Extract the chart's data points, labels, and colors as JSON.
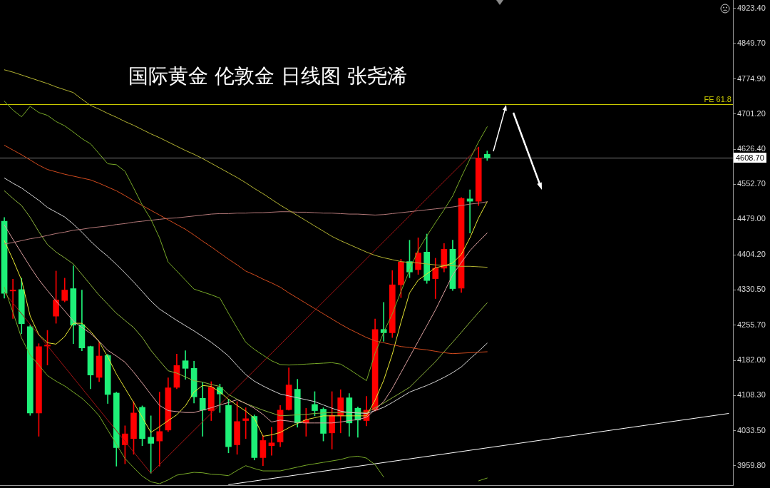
{
  "chart_data": {
    "type": "candlestick",
    "title": "国际黄金 伦敦金 日线图 张尧浠",
    "categories": [
      null,
      null,
      null,
      null,
      null,
      null,
      null,
      null,
      null,
      null,
      null,
      null,
      null,
      null,
      null,
      null,
      null,
      null,
      null,
      null,
      null,
      null,
      null,
      null,
      null,
      null,
      null,
      null,
      null,
      null,
      null,
      null,
      null,
      null,
      null,
      null,
      null,
      null,
      null,
      null,
      null,
      null,
      null,
      null,
      null,
      null,
      null,
      null,
      null,
      null,
      null,
      null,
      null,
      null,
      null,
      null,
      null,
      null,
      null,
      null,
      null,
      null,
      null,
      null,
      null,
      null,
      null,
      null,
      null,
      null,
      null,
      null,
      null,
      null,
      null,
      null,
      null,
      null,
      null,
      null,
      null,
      null,
      null,
      null,
      null
    ],
    "ohlc": [
      [
        4475,
        4483,
        4313,
        4323
      ],
      [
        4328,
        4353,
        4270,
        4330
      ],
      [
        4331,
        4355,
        4238,
        4259
      ],
      [
        4253,
        4257,
        4066,
        4071
      ],
      [
        4071,
        4217,
        4022,
        4211
      ],
      [
        4212,
        4245,
        4172,
        4214
      ],
      [
        4275,
        4370,
        4260,
        4309
      ],
      [
        4308,
        4355,
        4305,
        4330
      ],
      [
        4333,
        4381,
        4217,
        4256
      ],
      [
        4257,
        4330,
        4202,
        4208
      ],
      [
        4211,
        4212,
        4122,
        4151
      ],
      [
        4146,
        4220,
        4137,
        4191
      ],
      [
        4192,
        4195,
        4091,
        4110
      ],
      [
        4113,
        4115,
        3959,
        3998
      ],
      [
        4004,
        4044,
        3964,
        4027
      ],
      [
        4017,
        4095,
        3984,
        4071
      ],
      [
        4083,
        4086,
        4002,
        4017
      ],
      [
        4020,
        4065,
        3944,
        4007
      ],
      [
        4012,
        4115,
        3959,
        4032
      ],
      [
        4035,
        4145,
        4032,
        4124
      ],
      [
        4125,
        4195,
        4122,
        4171
      ],
      [
        4181,
        4202,
        4142,
        4165
      ],
      [
        4165,
        4180,
        4092,
        4105
      ],
      [
        4102,
        4135,
        4022,
        4077
      ],
      [
        4076,
        4137,
        4055,
        4125
      ],
      [
        4125,
        4132,
        4072,
        4111
      ],
      [
        4087,
        4100,
        3987,
        4000
      ],
      [
        4004,
        4095,
        3984,
        4053
      ],
      [
        4055,
        4082,
        4017,
        4059
      ],
      [
        4064,
        4067,
        3972,
        3977
      ],
      [
        3977,
        4024,
        3960,
        4013
      ],
      [
        4002,
        4041,
        3982,
        4008
      ],
      [
        4010,
        4087,
        4000,
        4077
      ],
      [
        4078,
        4166,
        4077,
        4130
      ],
      [
        4121,
        4142,
        4041,
        4050
      ],
      [
        4050,
        4081,
        4022,
        4056
      ],
      [
        4089,
        4116,
        4065,
        4076
      ],
      [
        4079,
        4082,
        4012,
        4028
      ],
      [
        4029,
        4116,
        3995,
        4066
      ],
      [
        4065,
        4120,
        4029,
        4103
      ],
      [
        4103,
        4112,
        4022,
        4050
      ],
      [
        4081,
        4084,
        4020,
        4056
      ],
      [
        4055,
        4106,
        4044,
        4077
      ],
      [
        4077,
        4269,
        4075,
        4247
      ],
      [
        4247,
        4304,
        4222,
        4240
      ],
      [
        4240,
        4371,
        4230,
        4341
      ],
      [
        4341,
        4395,
        4314,
        4389
      ],
      [
        4390,
        4435,
        4356,
        4368
      ],
      [
        4373,
        4440,
        4363,
        4408
      ],
      [
        4410,
        4448,
        4344,
        4350
      ],
      [
        4354,
        4397,
        4312,
        4376
      ],
      [
        4376,
        4428,
        4368,
        4416
      ],
      [
        4416,
        4435,
        4329,
        4333
      ],
      [
        4334,
        4525,
        4325,
        4523
      ],
      [
        4522,
        4541,
        4450,
        4517
      ],
      [
        4517,
        4631,
        4508,
        4608
      ],
      [
        4616,
        4623,
        4603,
        4608.7
      ],
      null,
      null,
      null,
      null,
      null,
      null,
      null,
      null,
      null,
      null,
      null,
      null,
      null,
      null,
      null,
      null,
      null,
      null,
      null,
      null,
      null,
      null,
      null,
      null,
      null,
      null,
      null,
      null
    ],
    "colors": [
      "#1ef078",
      "#ff0000",
      "#1ef078",
      "#1ef078",
      "#ff0000",
      "#ff0000",
      "#ff0000",
      "#ff0000",
      "#1ef078",
      "#1ef078",
      "#1ef078",
      "#ff0000",
      "#1ef078",
      "#1ef078",
      "#ff0000",
      "#ff0000",
      "#1ef078",
      "#1ef078",
      "#ff0000",
      "#ff0000",
      "#ff0000",
      "#1ef078",
      "#1ef078",
      "#1ef078",
      "#ff0000",
      "#1ef078",
      "#1ef078",
      "#ff0000",
      "#ff0000",
      "#1ef078",
      "#ff0000",
      "#ff0000",
      "#ff0000",
      "#ff0000",
      "#1ef078",
      "#ff0000",
      "#1ef078",
      "#1ef078",
      "#ff0000",
      "#ff0000",
      "#1ef078",
      "#1ef078",
      "#ff0000",
      "#ff0000",
      "#1ef078",
      "#ff0000",
      "#ff0000",
      "#1ef078",
      "#ff0000",
      "#1ef078",
      "#ff0000",
      "#ff0000",
      "#1ef078",
      "#ff0000",
      "#1ef078",
      "#ff0000",
      "#1ef078",
      null,
      null,
      null,
      null,
      null,
      null,
      null,
      null,
      null,
      null,
      null,
      null,
      null,
      null,
      null,
      null,
      null,
      null,
      null,
      null,
      null,
      null,
      null,
      null,
      null,
      null,
      null,
      null
    ],
    "series": [
      {
        "type": "line",
        "color": "#b4b432",
        "values": [
          4794,
          4789,
          4783,
          4777,
          4771,
          4765,
          4758,
          4752,
          4746,
          4732,
          4719,
          4711,
          4702,
          4694,
          4685,
          4677,
          4668,
          4659,
          4651,
          4642,
          4633,
          4624,
          4616,
          4607,
          4597,
          4587,
          4577,
          4567,
          4556,
          4544,
          4533,
          4521,
          4509,
          4498,
          4487,
          4476,
          4465,
          4454,
          4443,
          4434,
          4426,
          4418,
          4410,
          4403,
          4398,
          4394,
          4390,
          4388,
          4387,
          4385,
          4383,
          4382,
          4381,
          4380,
          4380,
          4379,
          4378,
          null,
          null,
          null,
          null,
          null,
          null,
          null,
          null,
          null,
          null,
          null,
          null,
          null,
          null,
          null,
          null,
          null,
          null,
          null,
          null,
          null,
          null,
          null,
          null,
          null,
          null,
          null,
          null
        ]
      },
      {
        "type": "line",
        "color": "#78aa28",
        "values": [
          4728,
          4709,
          4695,
          4717,
          4704,
          4698,
          4685,
          4676,
          4663,
          4649,
          4638,
          4617,
          4596,
          4594,
          4580,
          4545,
          4509,
          4479,
          4440,
          4389,
          4370,
          4351,
          4332,
          4326,
          4320,
          4313,
          4281,
          4250,
          4220,
          4205,
          4193,
          4181,
          4173,
          4172,
          4173,
          4174,
          4175,
          4176,
          4177,
          4174,
          4163,
          4151,
          4139,
          4197,
          4241,
          4280,
          4327,
          4372,
          4414,
          4444,
          4472,
          4499,
          4528,
          4568,
          4606,
          4642,
          4674,
          null,
          null,
          null,
          null,
          null,
          null,
          null,
          null,
          null,
          null,
          null,
          null,
          null,
          null,
          null,
          null,
          null,
          null,
          null,
          null,
          null,
          null,
          null,
          null,
          null,
          null,
          null,
          null
        ]
      },
      {
        "type": "line",
        "color": "#d24b1e",
        "values": [
          4635,
          4625,
          4615,
          4604,
          4593,
          4584,
          4579,
          4574,
          4570,
          4566,
          4562,
          4555,
          4547,
          4539,
          4529,
          4518,
          4508,
          4498,
          4488,
          4478,
          4468,
          4458,
          4446,
          4433,
          4421,
          4408,
          4395,
          4383,
          4370,
          4362,
          4353,
          4345,
          4336,
          4324,
          4313,
          4302,
          4291,
          4280,
          4269,
          4258,
          4248,
          4239,
          4230,
          4223,
          4219,
          4215,
          4211,
          4209,
          4206,
          4204,
          4201,
          4198,
          4196,
          4197,
          4198,
          4199,
          4200,
          null,
          null,
          null,
          null,
          null,
          null,
          null,
          null,
          null,
          null,
          null,
          null,
          null,
          null,
          null,
          null,
          null,
          null,
          null,
          null,
          null,
          null,
          null,
          null,
          null,
          null,
          null,
          null
        ]
      },
      {
        "type": "line",
        "color": "#b47878",
        "values": [
          4427,
          4430,
          4434,
          4438,
          4441,
          4445,
          4449,
          4452,
          4456,
          4458,
          4461,
          4463,
          4465,
          4468,
          4470,
          4473,
          4475,
          4477,
          4479,
          4481,
          4482,
          4484,
          4486,
          4488,
          4490,
          4491,
          4491,
          4492,
          4492,
          4493,
          4493,
          4494,
          4495,
          4495,
          4494,
          4494,
          4493,
          4492,
          4492,
          4491,
          4490,
          4490,
          4489,
          4488,
          4489,
          4491,
          4493,
          4495,
          4497,
          4499,
          4501,
          4503,
          4505,
          4508,
          4511,
          4513,
          4516,
          null,
          null,
          null,
          null,
          null,
          null,
          null,
          null,
          null,
          null,
          null,
          null,
          null,
          null,
          null,
          null,
          null,
          null,
          null,
          null,
          null,
          null,
          null,
          null,
          null,
          null,
          null,
          null
        ]
      },
      {
        "type": "line",
        "color": "#d2d2d2",
        "values": [
          4566,
          4555,
          4545,
          4532,
          4519,
          4504,
          4494,
          4484,
          4469,
          4452,
          4433,
          4416,
          4401,
          4384,
          4366,
          4347,
          4327,
          4307,
          4290,
          4278,
          4266,
          4255,
          4244,
          4232,
          4220,
          4206,
          4191,
          4171,
          4152,
          4138,
          4128,
          4119,
          4111,
          4107,
          4103,
          4099,
          4095,
          4088,
          4081,
          4075,
          4072,
          4071,
          4070,
          4076,
          4083,
          4093,
          4104,
          4115,
          4122,
          4129,
          4137,
          4146,
          4156,
          4168,
          4185,
          4201,
          4218,
          null,
          null,
          null,
          null,
          null,
          null,
          null,
          null,
          null,
          null,
          null,
          null,
          null,
          null,
          null,
          null,
          null,
          null,
          null,
          null,
          null,
          null,
          null,
          null,
          null,
          null,
          null,
          null
        ]
      },
      {
        "type": "line",
        "color": "#dca0a0",
        "values": [
          4467,
          4437,
          4408,
          4379,
          4352,
          4329,
          4307,
          4286,
          4265,
          4251,
          4239,
          4222,
          4203,
          4191,
          4178,
          4157,
          4134,
          4110,
          4087,
          4076,
          4074,
          4072,
          4072,
          4077,
          4082,
          4088,
          4093,
          4099,
          4091,
          4081,
          4068,
          4052,
          4056,
          4054,
          4051,
          4050,
          4050,
          4050,
          4050,
          4052,
          4055,
          4057,
          4062,
          4078,
          4095,
          4123,
          4156,
          4189,
          4222,
          4255,
          4288,
          4325,
          4362,
          4388,
          4413,
          4432,
          4450,
          null,
          null,
          null,
          null,
          null,
          null,
          null,
          null,
          null,
          null,
          null,
          null,
          null,
          null,
          null,
          null,
          null,
          null,
          null,
          null,
          null,
          null,
          null,
          null,
          null,
          null,
          null,
          null
        ]
      },
      {
        "type": "line",
        "color": "#e6e632",
        "values": [
          4434,
          4394,
          4351,
          4275,
          4236,
          4219,
          4216,
          4232,
          4260,
          4260,
          4243,
          4221,
          4189,
          4153,
          4123,
          4093,
          4062,
          4030,
          4042,
          4055,
          4067,
          4086,
          4115,
          4129,
          4127,
          4115,
          4100,
          4087,
          4075,
          4060,
          4022,
          4025,
          4030,
          4040,
          4049,
          4057,
          4061,
          4065,
          4065,
          4065,
          4065,
          4065,
          4065,
          4098,
          4140,
          4195,
          4262,
          4324,
          4351,
          4364,
          4377,
          4381,
          4387,
          4405,
          4440,
          4482,
          4516,
          null,
          null,
          null,
          null,
          null,
          null,
          null,
          null,
          null,
          null,
          null,
          null,
          null,
          null,
          null,
          null,
          null,
          null,
          null,
          null,
          null,
          null,
          null,
          null,
          null,
          null,
          null,
          null
        ]
      },
      {
        "type": "line",
        "color": "#78aa28",
        "values": [
          4336,
          4283,
          4229,
          4193,
          4172,
          4150,
          4138,
          4128,
          4115,
          4102,
          4085,
          4065,
          4035,
          4005,
          3975,
          3956,
          3938,
          3926,
          3922,
          3930,
          3940,
          3943,
          3946,
          3945,
          3942,
          3941,
          3939,
          3950,
          3960,
          3954,
          3949,
          3949,
          3949,
          3953,
          3957,
          3961,
          3964,
          3967,
          3970,
          3973,
          3978,
          3980,
          3976,
          3962,
          3936,
          null,
          null,
          null,
          null,
          null,
          null,
          null,
          null,
          null,
          null,
          null,
          null,
          null,
          null,
          null,
          null,
          null,
          null,
          null,
          null,
          null,
          null,
          null,
          null,
          null,
          null,
          null,
          null,
          null,
          null,
          null,
          null,
          null,
          null,
          null,
          null,
          null,
          null,
          null,
          null
        ]
      },
      {
        "type": "line",
        "color": "#78aa28",
        "values": [
          null,
          null,
          null,
          null,
          null,
          null,
          null,
          null,
          null,
          null,
          null,
          null,
          null,
          null,
          null,
          null,
          null,
          null,
          null,
          null,
          null,
          null,
          null,
          null,
          null,
          null,
          null,
          null,
          null,
          null,
          null,
          null,
          null,
          null,
          null,
          null,
          null,
          null,
          null,
          null,
          null,
          null,
          null,
          null,
          null,
          null,
          null,
          null,
          null,
          null,
          null,
          null,
          null,
          null,
          null,
          3928,
          3934,
          null,
          null,
          null,
          null,
          null,
          null,
          null,
          null,
          null,
          null,
          null,
          null,
          null,
          null,
          null,
          null,
          null,
          null,
          null,
          null,
          null,
          null,
          null,
          null,
          null,
          null,
          null,
          null
        ]
      },
      {
        "type": "line",
        "color": "#8cb43c",
        "values": [
          4539,
          4523,
          4508,
          4483,
          4453,
          4426,
          4410,
          4398,
          4385,
          4363,
          4341,
          4319,
          4300,
          4281,
          4266,
          4251,
          4230,
          4203,
          4181,
          4160,
          4155,
          4147,
          4139,
          4136,
          4131,
          4127,
          4110,
          4100,
          4091,
          4084,
          4077,
          4071,
          4065,
          4066,
          4067,
          4068,
          4070,
          4071,
          4072,
          4072,
          4072,
          4072,
          4072,
          4082,
          4092,
          4103,
          4114,
          4125,
          4143,
          4161,
          4179,
          4200,
          4220,
          4241,
          4262,
          4283,
          4303,
          null,
          null,
          null,
          null,
          null,
          null,
          null,
          null,
          null,
          null,
          null,
          null,
          null,
          null,
          null,
          null,
          null,
          null,
          null,
          null,
          null,
          null,
          null,
          null,
          null,
          null,
          null,
          null
        ]
      },
      {
        "type": "line",
        "color": "#a01414",
        "values": [
          4325,
          null,
          null,
          null,
          null,
          null,
          null,
          null,
          null,
          null,
          null,
          null,
          null,
          null,
          null,
          null,
          null,
          3944,
          null,
          null,
          null,
          null,
          null,
          null,
          null,
          null,
          null,
          null,
          null,
          null,
          null,
          null,
          null,
          null,
          null,
          null,
          null,
          null,
          null,
          null,
          null,
          null,
          null,
          null,
          null,
          null,
          null,
          null,
          null,
          null,
          null,
          null,
          null,
          null,
          null,
          4631,
          null,
          null,
          null,
          null,
          null,
          null,
          null,
          null,
          null,
          null,
          null,
          null,
          null,
          null,
          null,
          null,
          null,
          null,
          null,
          null,
          null,
          null,
          null,
          null,
          null,
          null,
          null,
          null,
          null
        ]
      },
      {
        "type": "line",
        "color": "#ffffff",
        "values": [
          null,
          null,
          null,
          null,
          null,
          null,
          null,
          null,
          null,
          null,
          null,
          null,
          null,
          null,
          null,
          null,
          null,
          null,
          null,
          null,
          null,
          null,
          null,
          null,
          null,
          null,
          3920,
          null,
          null,
          null,
          null,
          null,
          null,
          null,
          null,
          null,
          null,
          null,
          null,
          null,
          null,
          null,
          null,
          null,
          null,
          null,
          null,
          null,
          null,
          null,
          null,
          null,
          null,
          null,
          null,
          null,
          null,
          null,
          null,
          null,
          null,
          null,
          null,
          null,
          null,
          null,
          null,
          null,
          null,
          null,
          null,
          null,
          null,
          null,
          null,
          null,
          null,
          null,
          null,
          null,
          null,
          null,
          null,
          null,
          4070
        ]
      }
    ],
    "ylim": [
      3919,
      4941
    ],
    "yticks": [
      {
        "value": 3959.8,
        "label": "3959.80"
      },
      {
        "value": 4033.5,
        "label": "4033.50"
      },
      {
        "value": 4108.3,
        "label": "4108.30"
      },
      {
        "value": 4182,
        "label": "4182.00"
      },
      {
        "value": 4255.7,
        "label": "4255.70"
      },
      {
        "value": 4330.5,
        "label": "4330.50"
      },
      {
        "value": 4404.2,
        "label": "4404.20"
      },
      {
        "value": 4479,
        "label": "4479.00"
      },
      {
        "value": 4552.7,
        "label": "4552.70"
      },
      {
        "value": 4626.4,
        "label": "4626.40"
      },
      {
        "value": 4701.2,
        "label": "4701.20"
      },
      {
        "value": 4774.9,
        "label": "4774.90"
      },
      {
        "value": 4849.7,
        "label": "4849.70"
      },
      {
        "value": 4923.4,
        "label": "4923.40"
      }
    ],
    "ref_lines": [
      {
        "axis": "y",
        "value": 4721,
        "label": "FE 61.8",
        "color": "#c8c800"
      },
      {
        "axis": "y",
        "value": 4608.7,
        "color": "#808080"
      }
    ],
    "annotations": [
      "4608.70"
    ],
    "tick_labels": "y"
  }
}
